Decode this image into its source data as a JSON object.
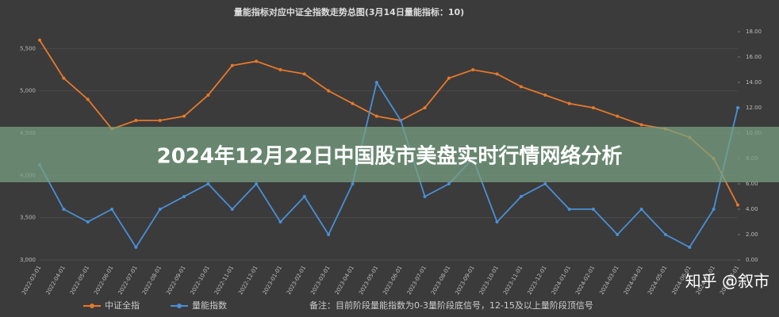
{
  "chart_data": {
    "type": "line",
    "title": "量能指标对应中证全指数走势总图(3月14日量能指标：10)",
    "categories": [
      "2022-03-01",
      "2022-04-01",
      "2022-05-01",
      "2022-06-01",
      "2022-07-01",
      "2022-08-01",
      "2022-09-01",
      "2022-10-01",
      "2022-11-01",
      "2022-12-01",
      "2023-01-01",
      "2023-02-01",
      "2023-03-01",
      "2023-04-01",
      "2023-05-01",
      "2023-06-01",
      "2023-07-01",
      "2023-08-01",
      "2023-09-01",
      "2023-10-01",
      "2023-11-01",
      "2023-12-01",
      "2024-01-01",
      "2024-02-01",
      "2024-03-01",
      "2024-04-01",
      "2024-05-01",
      "2024-06-01",
      "2024-07-01",
      "2024-08-01"
    ],
    "series": [
      {
        "name": "中证全指",
        "color": "#e8782a",
        "axis": "y",
        "values": [
          5600,
          5150,
          4900,
          4550,
          4650,
          4650,
          4700,
          4950,
          5300,
          5350,
          5250,
          5200,
          5000,
          4850,
          4700,
          4650,
          4800,
          5150,
          5250,
          5200,
          5050,
          4950,
          4850,
          4800,
          4700,
          4600,
          4550,
          4450,
          4200,
          3650
        ]
      },
      {
        "name": "量能指数",
        "color": "#4a8fd6",
        "axis": "y2",
        "values": [
          7.5,
          4,
          3,
          4,
          1,
          4,
          5,
          6,
          4,
          6,
          3,
          5,
          2,
          6,
          14,
          11,
          5,
          6,
          8,
          3,
          5,
          6,
          4,
          4,
          2,
          4,
          2,
          1,
          4,
          12
        ]
      }
    ],
    "ylim": [
      3000,
      5700
    ],
    "yticks": [
      {
        "value": 3000,
        "label": "3,000"
      },
      {
        "value": 3500,
        "label": "3,500"
      },
      {
        "value": 4000,
        "label": "4,000"
      },
      {
        "value": 4500,
        "label": "4,500"
      },
      {
        "value": 5000,
        "label": "5,000"
      },
      {
        "value": 5500,
        "label": "5,500"
      }
    ],
    "y2lim": [
      0,
      18
    ],
    "y2ticks": [
      {
        "value": 0,
        "label": "0.00"
      },
      {
        "value": 2,
        "label": "2.00"
      },
      {
        "value": 4,
        "label": "4.00"
      },
      {
        "value": 6,
        "label": "6.00"
      },
      {
        "value": 8,
        "label": "8.00"
      },
      {
        "value": 10,
        "label": "10.00"
      },
      {
        "value": 12,
        "label": "12.00"
      },
      {
        "value": 14,
        "label": "14.00"
      },
      {
        "value": 16,
        "label": "16.00"
      },
      {
        "value": 18,
        "label": "18.00"
      }
    ],
    "note": "备注：目前阶段量能指数为0-3量阶段底信号，12-15及以上量阶段顶信号"
  },
  "banner": "2024年12月22日中国股市美盘实时行情网络分析",
  "watermark": "知乎 @叙市"
}
